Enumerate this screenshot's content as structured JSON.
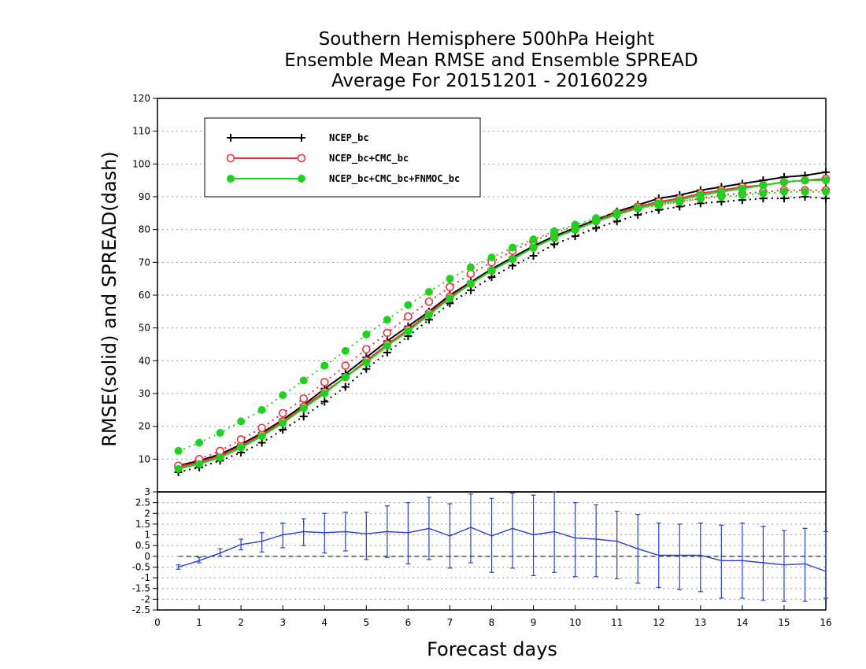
{
  "title_lines": [
    "Southern Hemisphere 500hPa Height",
    "Ensemble Mean RMSE and Ensemble SPREAD",
    "Average For 20151201 - 20160229"
  ],
  "colors": {
    "NCEP_bc": "#000000",
    "NCEP_bc+CMC_bc": "#e8343a",
    "NCEP_bc+CMC_bc+FNMOC_bc": "#1fd21f",
    "difference": "#2a3fcf",
    "grid": "#999999"
  },
  "chart_data": [
    {
      "type": "line",
      "title": "Southern Hemisphere 500hPa Height / Ensemble Mean RMSE and Ensemble SPREAD / Average For 20151201 - 20160229",
      "ylabel": "RMSE(solid) and SPREAD(dash)",
      "xlim": [
        0,
        16
      ],
      "ylim": [
        0,
        120
      ],
      "yticks": [
        10,
        20,
        30,
        40,
        50,
        60,
        70,
        80,
        90,
        100,
        110,
        120
      ],
      "grid": true,
      "legend_placement": "top-left",
      "x": [
        0.5,
        1,
        1.5,
        2,
        2.5,
        3,
        3.5,
        4,
        4.5,
        5,
        5.5,
        6,
        6.5,
        7,
        7.5,
        8,
        8.5,
        9,
        9.5,
        10,
        10.5,
        11,
        11.5,
        12,
        12.5,
        13,
        13.5,
        14,
        14.5,
        15,
        15.5,
        16
      ],
      "series": [
        {
          "name": "NCEP_bc",
          "style": "solid",
          "marker": "plus",
          "values": [
            8,
            9.5,
            11.5,
            14.5,
            18,
            22,
            26.5,
            31.5,
            36,
            41,
            46,
            50.5,
            55,
            60,
            64,
            68,
            71.5,
            75,
            78,
            80.5,
            83,
            85.5,
            87.5,
            89.5,
            90.5,
            92,
            93,
            94,
            95,
            96,
            96.5,
            97.5
          ]
        },
        {
          "name": "NCEP_bc",
          "style": "dash",
          "marker": "plus",
          "values": [
            6,
            7.5,
            9.5,
            12,
            15,
            19,
            23,
            27.5,
            32,
            37.5,
            42.5,
            47.5,
            52.5,
            57.5,
            61.5,
            65.5,
            69,
            72,
            75.5,
            78,
            80.5,
            82.5,
            84.5,
            86,
            87,
            88,
            88.5,
            89,
            89.5,
            89.5,
            90,
            89.5
          ]
        },
        {
          "name": "NCEP_bc+CMC_bc",
          "style": "solid",
          "marker": "circle",
          "values": [
            7.5,
            9,
            11,
            14,
            17.5,
            21.5,
            26,
            30.5,
            35,
            40,
            45,
            49.5,
            54.5,
            59.5,
            63.5,
            67.5,
            71,
            74.5,
            77.5,
            80,
            82.5,
            85,
            87,
            88.5,
            89.5,
            91,
            92,
            93,
            93.5,
            94.5,
            95,
            95.5
          ]
        },
        {
          "name": "NCEP_bc+CMC_bc",
          "style": "dash",
          "marker": "circle",
          "values": [
            8,
            10,
            12.5,
            16,
            19.5,
            24,
            28.5,
            33.5,
            38.5,
            43.5,
            48.5,
            53.5,
            58,
            62.5,
            66.5,
            70,
            73.5,
            76.5,
            79,
            81,
            83,
            85,
            86.5,
            87.5,
            88.5,
            89.5,
            90.5,
            91,
            91.5,
            92,
            92,
            92
          ]
        },
        {
          "name": "NCEP_bc+CMC_bc+FNMOC_bc",
          "style": "solid",
          "marker": "dot",
          "values": [
            7,
            8.5,
            10.5,
            13.5,
            17,
            21,
            25.5,
            30,
            35,
            39.5,
            44.5,
            49,
            54,
            59,
            63.5,
            67.5,
            71,
            74.5,
            77.5,
            80,
            82.5,
            84.5,
            86.5,
            88,
            89,
            90.5,
            91.5,
            92.5,
            93.5,
            94.5,
            95,
            95
          ]
        },
        {
          "name": "NCEP_bc+CMC_bc+FNMOC_bc",
          "style": "dash",
          "marker": "dot",
          "values": [
            12.5,
            15,
            18,
            21.5,
            25,
            29.5,
            34,
            38.5,
            43,
            48,
            52.5,
            57,
            61,
            65,
            68.5,
            71.5,
            74.5,
            77,
            79.5,
            81.5,
            83.5,
            85,
            86.5,
            87.5,
            88.5,
            89.5,
            90,
            90.5,
            91,
            91.5,
            91.5,
            91.5
          ]
        }
      ]
    },
    {
      "type": "line",
      "xlabel": "Forecast days",
      "xlim": [
        0,
        16
      ],
      "xticks": [
        0,
        1,
        2,
        3,
        4,
        5,
        6,
        7,
        8,
        9,
        10,
        11,
        12,
        13,
        14,
        15,
        16
      ],
      "ylim": [
        -2.5,
        3
      ],
      "yticks": [
        -2.5,
        -2,
        -1.5,
        -1,
        -0.5,
        0,
        0.5,
        1,
        1.5,
        2,
        2.5,
        3
      ],
      "grid": true,
      "reference_line": 0,
      "x": [
        0.5,
        1,
        1.5,
        2,
        2.5,
        3,
        3.5,
        4,
        4.5,
        5,
        5.5,
        6,
        6.5,
        7,
        7.5,
        8,
        8.5,
        9,
        9.5,
        10,
        10.5,
        11,
        11.5,
        12,
        12.5,
        13,
        13.5,
        14,
        14.5,
        15,
        15.5,
        16
      ],
      "series": [
        {
          "values": [
            -0.5,
            -0.2,
            0.15,
            0.55,
            0.7,
            1.0,
            1.15,
            1.1,
            1.15,
            1.05,
            1.15,
            1.1,
            1.3,
            0.95,
            1.35,
            0.95,
            1.3,
            1.0,
            1.15,
            0.85,
            0.8,
            0.7,
            0.35,
            0.05,
            0.05,
            0.05,
            -0.2,
            -0.2,
            -0.3,
            -0.4,
            -0.35,
            -0.7
          ],
          "error_low": [
            -0.6,
            -0.3,
            0.0,
            0.3,
            0.2,
            0.4,
            0.5,
            0.15,
            0.25,
            -0.15,
            -0.05,
            -0.35,
            -0.15,
            -0.55,
            -0.3,
            -0.75,
            -0.55,
            -0.9,
            -0.75,
            -0.95,
            -0.95,
            -1.05,
            -1.25,
            -1.45,
            -1.55,
            -1.65,
            -1.95,
            -1.95,
            -2.05,
            -2.1,
            -2.1,
            -1.95
          ],
          "error_high": [
            -0.4,
            -0.05,
            0.35,
            0.8,
            1.1,
            1.55,
            1.75,
            2.0,
            2.05,
            2.05,
            2.35,
            2.5,
            2.75,
            2.45,
            2.9,
            2.7,
            2.95,
            2.85,
            3.0,
            2.5,
            2.4,
            2.1,
            1.95,
            1.55,
            1.5,
            1.55,
            1.45,
            1.55,
            1.4,
            1.2,
            1.3,
            1.15
          ]
        }
      ]
    }
  ]
}
